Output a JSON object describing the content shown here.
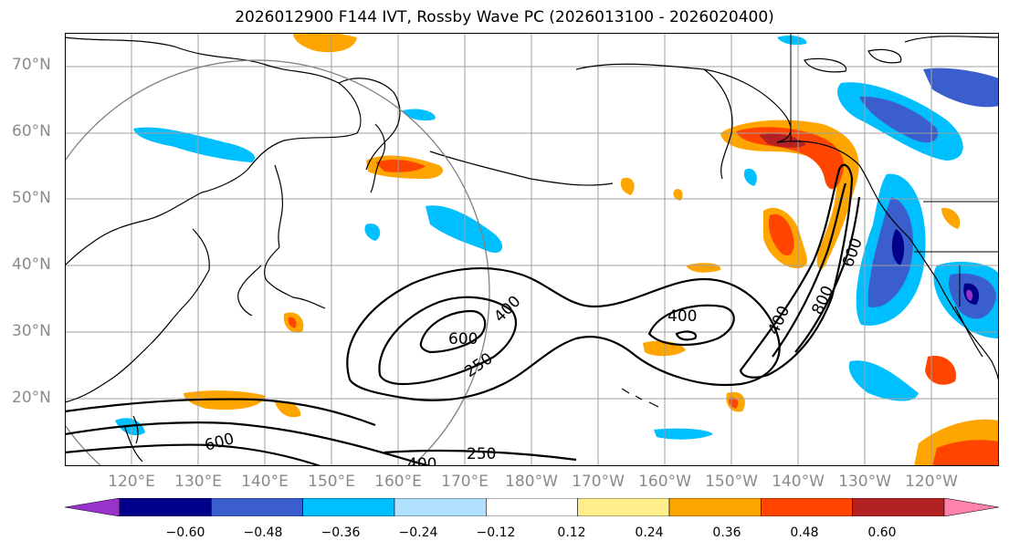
{
  "title": "2026012900 F144 IVT, Rossby Wave PC (2026013100 - 2026020400)",
  "lat_labels": [
    "70°N",
    "60°N",
    "50°N",
    "40°N",
    "30°N",
    "20°N"
  ],
  "lon_labels": [
    "120°E",
    "130°E",
    "140°E",
    "150°E",
    "160°E",
    "170°E",
    "180°W",
    "170°W",
    "160°W",
    "150°W",
    "140°W",
    "130°W",
    "120°W"
  ],
  "contour_labels": [
    "600",
    "400",
    "250",
    "400",
    "600",
    "800",
    "400",
    "250",
    "400",
    "600"
  ],
  "colorbar": {
    "ticks": [
      "−0.60",
      "−0.48",
      "−0.36",
      "−0.24",
      "−0.12",
      "0.12",
      "0.24",
      "0.36",
      "0.48",
      "0.60"
    ],
    "colors": [
      "#9932CC",
      "#00008B",
      "#3A5FCD",
      "#00BFFF",
      "#B0E2FF",
      "#FFFFFF",
      "#FFEC8B",
      "#FFA500",
      "#FF4500",
      "#B22222",
      "#FF82AB"
    ]
  },
  "colors": {
    "land_line": "#000000",
    "grid": "#a0a0a0",
    "circle": "#808080",
    "contour": "#000000"
  }
}
